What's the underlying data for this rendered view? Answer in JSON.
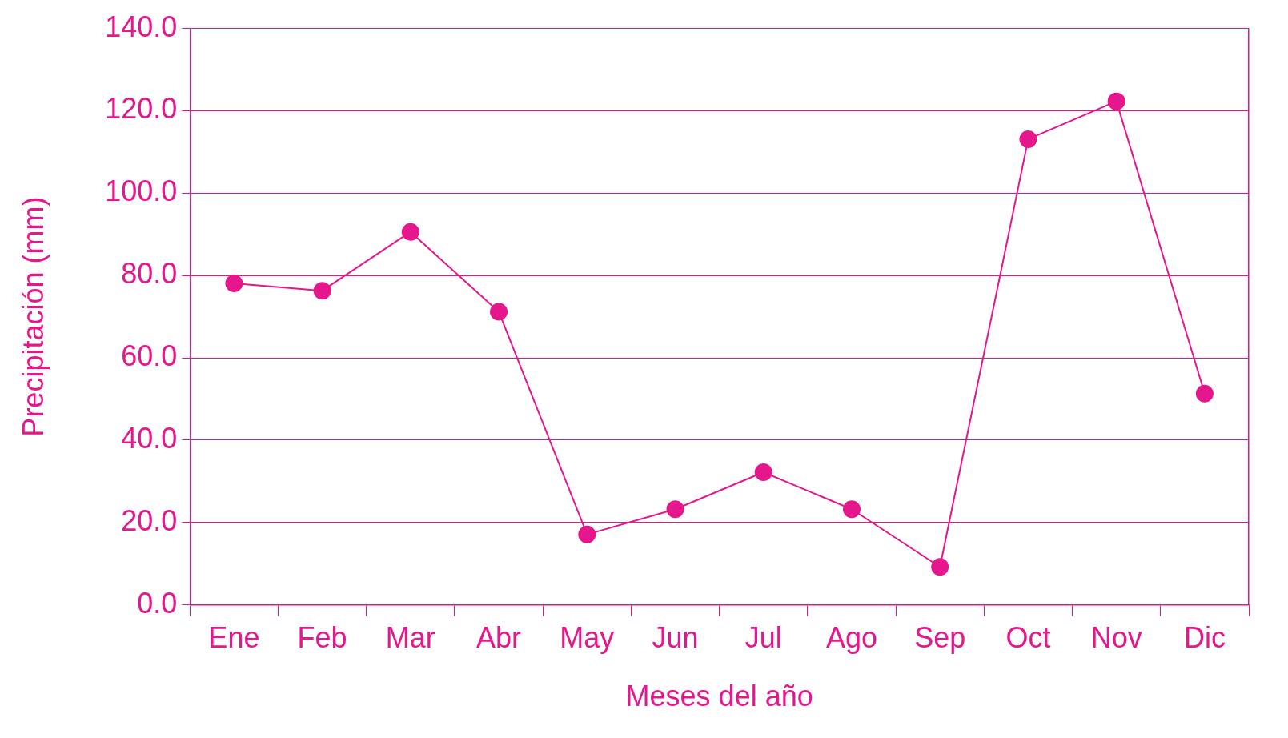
{
  "chart_data": {
    "type": "line",
    "xlabel": "Meses del año",
    "ylabel": "Precipitación (mm)",
    "categories": [
      "Ene",
      "Feb",
      "Mar",
      "Abr",
      "May",
      "Jun",
      "Jul",
      "Ago",
      "Sep",
      "Oct",
      "Nov",
      "Dic"
    ],
    "series": [
      {
        "color": "#e6168c",
        "values": [
          78.1,
          76.3,
          90.6,
          71.2,
          17.1,
          23.2,
          32.2,
          23.2,
          9.2,
          113.1,
          122.3,
          51.3
        ]
      }
    ],
    "ylim": [
      0,
      140
    ],
    "yticks": [
      {
        "value": 0,
        "label": "0.0"
      },
      {
        "value": 20,
        "label": "20.0"
      },
      {
        "value": 40,
        "label": "40.0"
      },
      {
        "value": 60,
        "label": "60.0"
      },
      {
        "value": 80,
        "label": "80.0"
      },
      {
        "value": 100,
        "label": "100.0"
      },
      {
        "value": 120,
        "label": "120.0"
      },
      {
        "value": 140,
        "label": "140.0"
      }
    ],
    "grid": "y",
    "legend": false,
    "marker": "circle",
    "line_style": "solid"
  }
}
